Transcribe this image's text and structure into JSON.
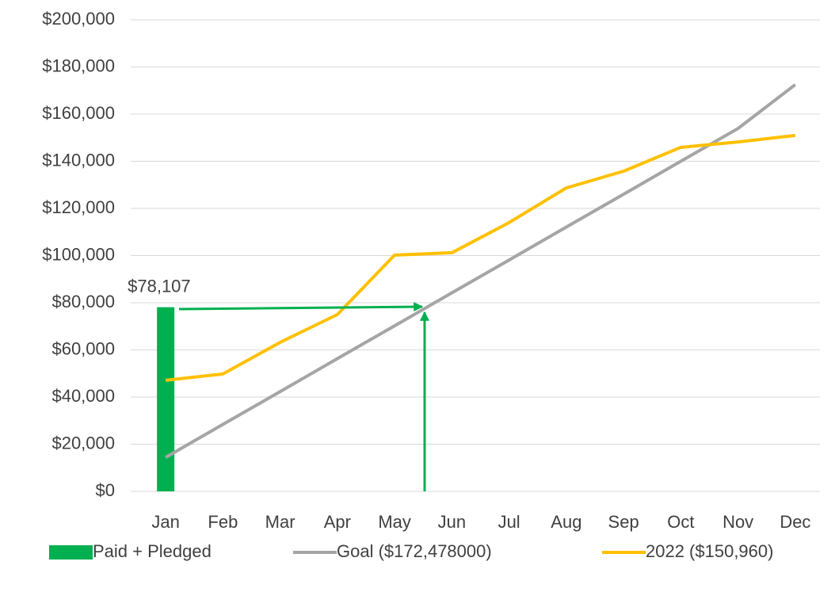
{
  "chart_data": {
    "type": "combo",
    "categories": [
      "Jan",
      "Feb",
      "Mar",
      "Apr",
      "May",
      "Jun",
      "Jul",
      "Aug",
      "Sep",
      "Oct",
      "Nov",
      "Dec"
    ],
    "ylim": [
      0,
      200000
    ],
    "yticks": [
      {
        "value": 0,
        "label": "$0"
      },
      {
        "value": 20000,
        "label": "$20,000"
      },
      {
        "value": 40000,
        "label": "$40,000"
      },
      {
        "value": 60000,
        "label": "$60,000"
      },
      {
        "value": 80000,
        "label": "$80,000"
      },
      {
        "value": 100000,
        "label": "$100,000"
      },
      {
        "value": 120000,
        "label": "$120,000"
      },
      {
        "value": 140000,
        "label": "$140,000"
      },
      {
        "value": 160000,
        "label": "$160,000"
      },
      {
        "value": 180000,
        "label": "$180,000"
      },
      {
        "value": 200000,
        "label": "$200,000"
      }
    ],
    "grid": true,
    "legend": "bottom",
    "series": [
      {
        "name": "Paid + Pledged",
        "type": "bar",
        "color": "#00b050",
        "values": [
          78107,
          null,
          null,
          null,
          null,
          null,
          null,
          null,
          null,
          null,
          null,
          null
        ],
        "value_labels": [
          "$78,107",
          null,
          null,
          null,
          null,
          null,
          null,
          null,
          null,
          null,
          null,
          null
        ]
      },
      {
        "name": "Goal ($172,478000)",
        "type": "line",
        "color": "#a5a5a5",
        "values": [
          14400,
          28400,
          42300,
          56300,
          70200,
          84200,
          98100,
          112100,
          126000,
          140000,
          153900,
          172500
        ]
      },
      {
        "name": "2022 ($150,960)",
        "type": "line",
        "color": "#ffc000",
        "values": [
          47100,
          49800,
          63200,
          75000,
          100200,
          101200,
          114000,
          128700,
          135800,
          145900,
          148200,
          150960
        ]
      }
    ]
  }
}
